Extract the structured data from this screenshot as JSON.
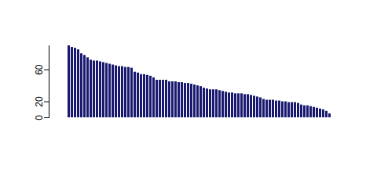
{
  "chart_data": {
    "type": "bar",
    "categories": [
      null,
      null,
      null,
      null,
      null,
      null,
      null,
      null,
      null,
      null,
      null,
      null,
      null,
      null,
      null,
      null,
      null,
      null,
      null,
      null,
      null,
      null,
      null,
      null,
      null,
      null,
      null,
      null,
      null,
      null,
      null,
      null,
      null,
      null,
      null,
      null,
      null,
      null,
      null,
      null,
      null,
      null,
      null,
      null,
      null,
      null,
      null,
      null,
      null,
      null,
      null,
      null,
      null,
      null,
      null,
      null,
      null,
      null,
      null,
      null,
      null,
      null,
      null,
      null,
      null,
      null,
      null,
      null,
      null,
      null,
      null,
      null,
      null,
      null,
      null,
      null,
      null,
      null,
      null,
      null,
      null,
      null,
      null,
      null
    ],
    "values": [
      90,
      88,
      87,
      85,
      80,
      78,
      75,
      72,
      71,
      71,
      70,
      69,
      68,
      67,
      66,
      65,
      64,
      64,
      63,
      63,
      62,
      57,
      56,
      54,
      54,
      53,
      52,
      50,
      47,
      47,
      47,
      47,
      45,
      45,
      45,
      44,
      44,
      43,
      43,
      42,
      41,
      40,
      39,
      37,
      36,
      35,
      35,
      35,
      34,
      33,
      32,
      31,
      31,
      30,
      30,
      30,
      29,
      29,
      28,
      27,
      26,
      25,
      23,
      22,
      22,
      22,
      21,
      21,
      20,
      20,
      19,
      19,
      19,
      18,
      16,
      15,
      15,
      14,
      13,
      12,
      11,
      10,
      8,
      5
    ],
    "color": "#191970",
    "ylim": [
      0,
      90
    ],
    "yticks": [
      0,
      20,
      60
    ],
    "tick_labels": "y"
  }
}
